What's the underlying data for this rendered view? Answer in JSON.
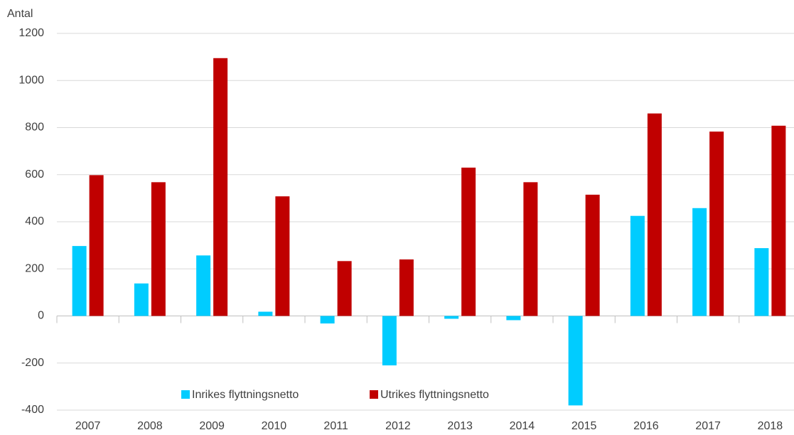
{
  "chart_data": {
    "type": "bar",
    "y_label": "Antal",
    "categories": [
      "2007",
      "2008",
      "2009",
      "2010",
      "2011",
      "2012",
      "2013",
      "2014",
      "2015",
      "2016",
      "2017",
      "2018"
    ],
    "series": [
      {
        "name": "Inrikes flyttningsnetto",
        "color": "#00ccff",
        "values": [
          297,
          138,
          257,
          18,
          -32,
          -210,
          -12,
          -18,
          -380,
          425,
          458,
          288
        ]
      },
      {
        "name": "Utrikes flyttningsnetto",
        "color": "#c00000",
        "values": [
          598,
          568,
          1095,
          508,
          233,
          240,
          630,
          568,
          515,
          860,
          783,
          808
        ]
      }
    ],
    "ylim": [
      -400,
      1200
    ],
    "yticks": [
      -400,
      -200,
      0,
      200,
      400,
      600,
      800,
      1000,
      1200
    ],
    "grid": true,
    "legend": "bottom"
  }
}
